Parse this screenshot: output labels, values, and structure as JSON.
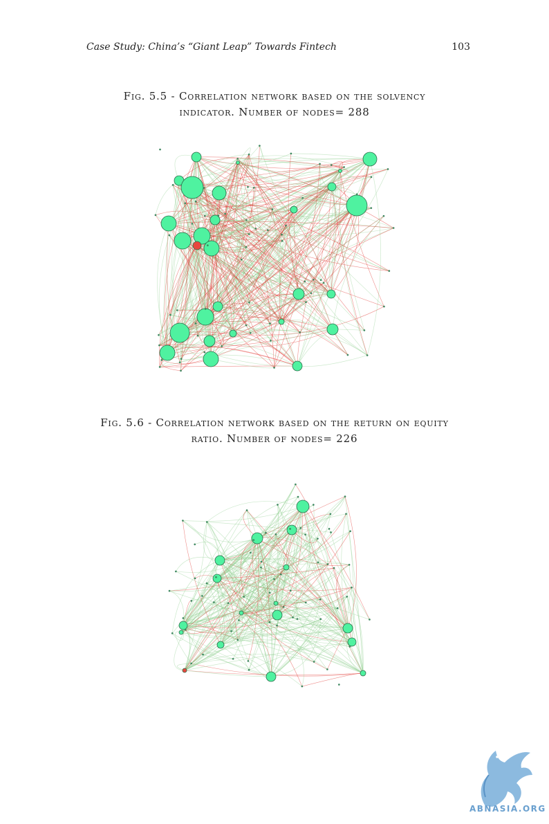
{
  "header": {
    "running_title": "Case Study: China’s “Giant Leap” Towards Fintech",
    "page_number": "103"
  },
  "figures": [
    {
      "caption_line1": "Fig. 5.5 - Correlation network based on the solvency",
      "caption_line2": "indicator. Number of nodes= 288"
    },
    {
      "caption_line1": "Fig. 5.6 - Correlation network based on the return on equity",
      "caption_line2": "ratio. Number of nodes= 226"
    }
  ],
  "watermark": {
    "text": "ABNASIA.ORG"
  },
  "colors": {
    "node_fill": "#4ff2a0",
    "node_highlight": "#e8473f",
    "edge_positive": "#8fcf8f",
    "edge_negative": "#e0302a",
    "watermark": "#6aa0cf"
  }
}
